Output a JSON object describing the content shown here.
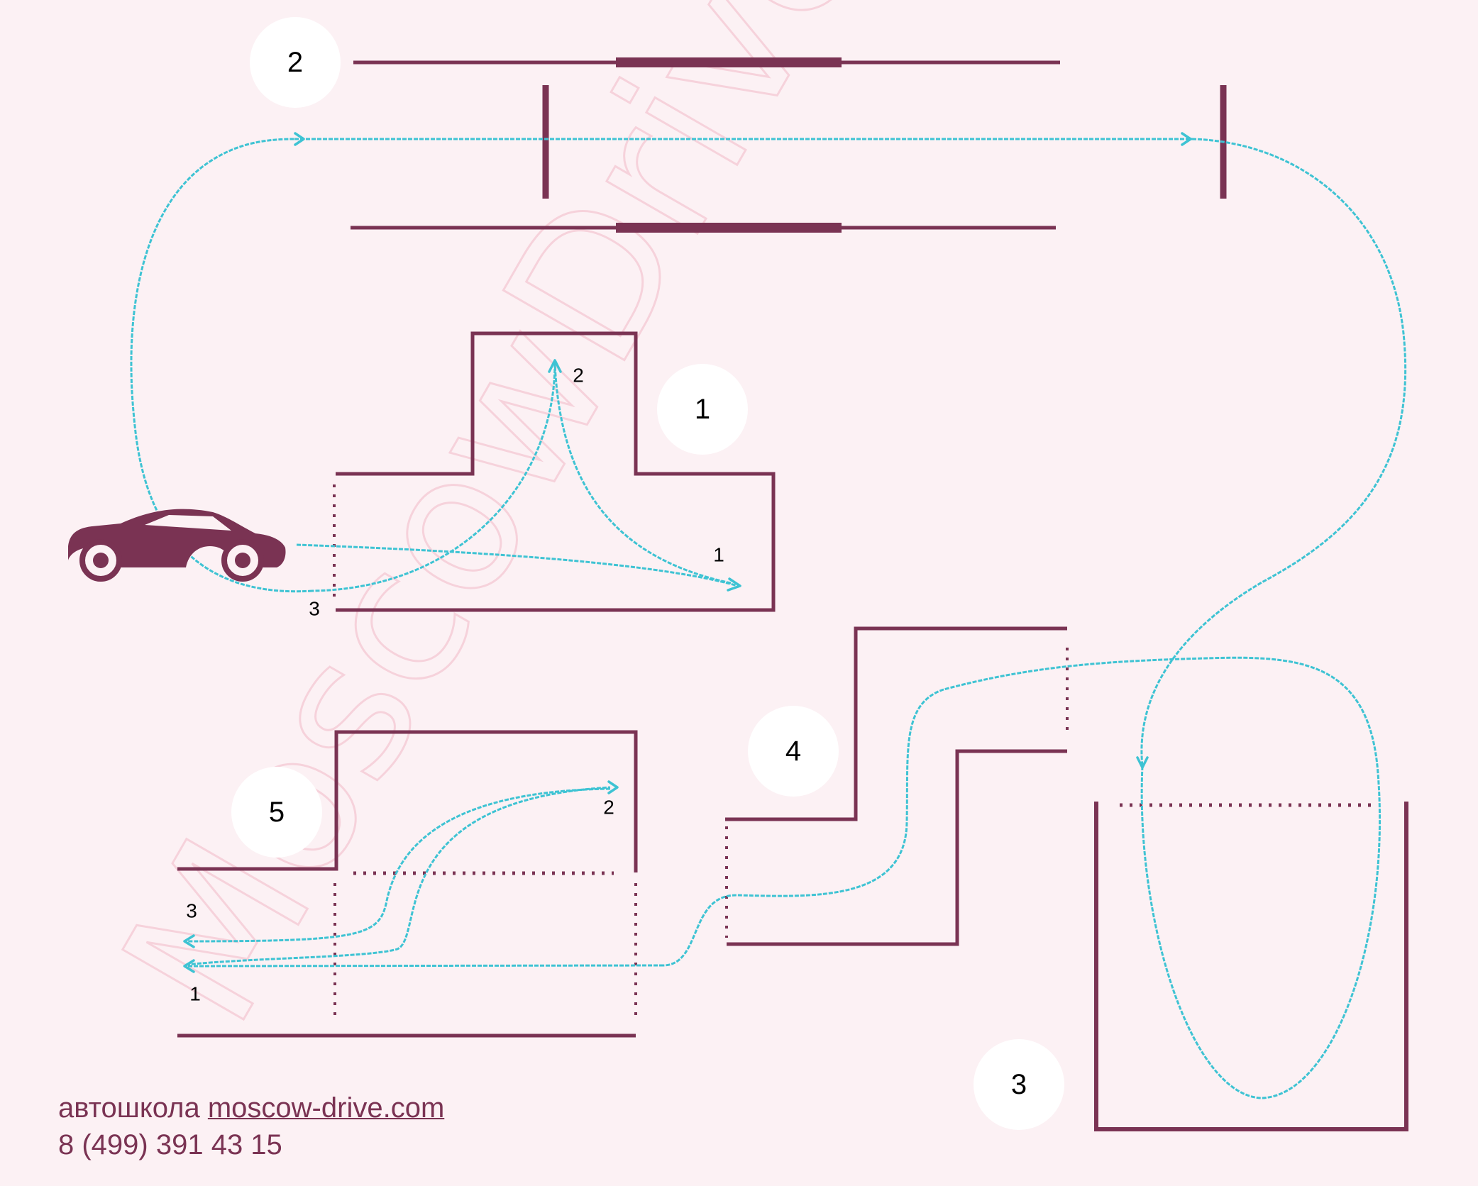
{
  "watermark": "MoscowDrive",
  "colors": {
    "background": "#fcf1f4",
    "walls": "#7a3353",
    "route": "#3ec3d3",
    "badge": "#ffffff"
  },
  "icons": {
    "car": "sports-car-icon"
  },
  "exercises": [
    {
      "number": "1",
      "route_labels": [
        "1",
        "2",
        "3"
      ]
    },
    {
      "number": "2"
    },
    {
      "number": "3"
    },
    {
      "number": "4"
    },
    {
      "number": "5",
      "route_labels": [
        "1",
        "2",
        "3"
      ]
    }
  ],
  "footer": {
    "school_prefix": "автошкола",
    "site": "moscow-drive.com",
    "phone": "8 (499) 391 43 15"
  }
}
